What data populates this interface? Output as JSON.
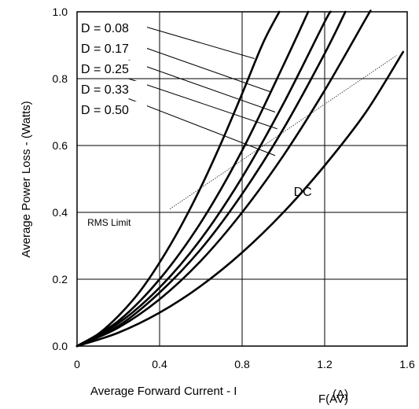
{
  "chart_data": {
    "type": "line",
    "xlabel": "Average Forward Current - I",
    "xlabel_subscript": "F(AV)",
    "xlabel_unit": "(A)",
    "ylabel": "Average Power Loss - (Watts)",
    "xlim": [
      0,
      1.6
    ],
    "ylim": [
      0,
      1.0
    ],
    "x_ticks": [
      "0",
      "0.4",
      "0.8",
      "1.2",
      "1.6"
    ],
    "y_ticks": [
      "0.0",
      "0.2",
      "0.4",
      "0.6",
      "0.8",
      "1.0"
    ],
    "grid": true,
    "series": [
      {
        "name": "D = 0.08",
        "points": [
          [
            0,
            0
          ],
          [
            0.1,
            0.035
          ],
          [
            0.2,
            0.09
          ],
          [
            0.3,
            0.16
          ],
          [
            0.4,
            0.25
          ],
          [
            0.5,
            0.355
          ],
          [
            0.6,
            0.475
          ],
          [
            0.7,
            0.61
          ],
          [
            0.8,
            0.755
          ],
          [
            0.9,
            0.905
          ],
          [
            0.98,
            1.0
          ]
        ]
      },
      {
        "name": "D = 0.17",
        "points": [
          [
            0,
            0
          ],
          [
            0.2,
            0.075
          ],
          [
            0.4,
            0.2
          ],
          [
            0.6,
            0.37
          ],
          [
            0.8,
            0.585
          ],
          [
            1.0,
            0.84
          ],
          [
            1.12,
            1.0
          ]
        ]
      },
      {
        "name": "D = 0.25",
        "points": [
          [
            0,
            0
          ],
          [
            0.2,
            0.068
          ],
          [
            0.4,
            0.175
          ],
          [
            0.6,
            0.32
          ],
          [
            0.8,
            0.505
          ],
          [
            1.0,
            0.725
          ],
          [
            1.2,
            0.97
          ],
          [
            1.23,
            1.0
          ]
        ]
      },
      {
        "name": "D = 0.33",
        "points": [
          [
            0,
            0
          ],
          [
            0.2,
            0.06
          ],
          [
            0.4,
            0.16
          ],
          [
            0.6,
            0.29
          ],
          [
            0.8,
            0.455
          ],
          [
            1.0,
            0.65
          ],
          [
            1.2,
            0.875
          ],
          [
            1.3,
            1.0
          ]
        ]
      },
      {
        "name": "D = 0.50",
        "points": [
          [
            0,
            0
          ],
          [
            0.2,
            0.055
          ],
          [
            0.4,
            0.14
          ],
          [
            0.6,
            0.255
          ],
          [
            0.8,
            0.4
          ],
          [
            1.0,
            0.57
          ],
          [
            1.2,
            0.765
          ],
          [
            1.4,
            0.98
          ],
          [
            1.42,
            1.0
          ]
        ]
      },
      {
        "name": "DC",
        "points": [
          [
            0,
            0
          ],
          [
            0.2,
            0.04
          ],
          [
            0.4,
            0.1
          ],
          [
            0.6,
            0.18
          ],
          [
            0.8,
            0.28
          ],
          [
            1.0,
            0.4
          ],
          [
            1.2,
            0.54
          ],
          [
            1.4,
            0.7
          ],
          [
            1.58,
            0.88
          ]
        ]
      }
    ],
    "rms_limit": {
      "label": "RMS Limit",
      "points": [
        [
          0.45,
          0.41
        ],
        [
          1.55,
          0.87
        ]
      ]
    },
    "legend_entries": [
      "D = 0.08",
      "D = 0.17",
      "D = 0.25",
      "D = 0.33",
      "D = 0.50"
    ],
    "legend_targets": [
      {
        "from": [
          0.25,
          0.97
        ],
        "to": [
          0.86,
          0.86
        ]
      },
      {
        "from": [
          0.25,
          0.91
        ],
        "to": [
          0.94,
          0.76
        ]
      },
      {
        "from": [
          0.25,
          0.855
        ],
        "to": [
          0.96,
          0.7
        ]
      },
      {
        "from": [
          0.25,
          0.8
        ],
        "to": [
          0.97,
          0.65
        ]
      },
      {
        "from": [
          0.25,
          0.74
        ],
        "to": [
          0.96,
          0.57
        ]
      }
    ],
    "dc_label": "DC",
    "legend_position": "top-left"
  }
}
